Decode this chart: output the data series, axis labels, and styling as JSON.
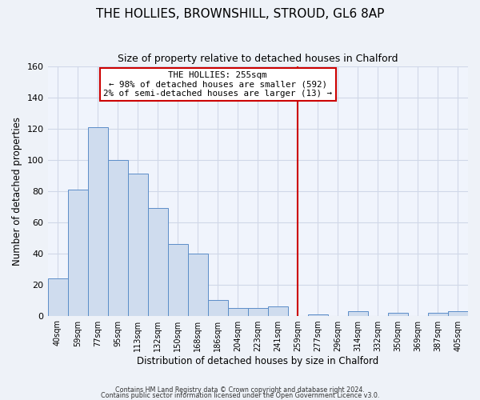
{
  "title": "THE HOLLIES, BROWNSHILL, STROUD, GL6 8AP",
  "subtitle": "Size of property relative to detached houses in Chalford",
  "xlabel": "Distribution of detached houses by size in Chalford",
  "ylabel": "Number of detached properties",
  "bar_labels": [
    "40sqm",
    "59sqm",
    "77sqm",
    "95sqm",
    "113sqm",
    "132sqm",
    "150sqm",
    "168sqm",
    "186sqm",
    "204sqm",
    "223sqm",
    "241sqm",
    "259sqm",
    "277sqm",
    "296sqm",
    "314sqm",
    "332sqm",
    "350sqm",
    "369sqm",
    "387sqm",
    "405sqm"
  ],
  "bar_heights": [
    24,
    81,
    121,
    100,
    91,
    69,
    46,
    40,
    10,
    5,
    5,
    6,
    0,
    1,
    0,
    3,
    0,
    2,
    0,
    2,
    3
  ],
  "bar_color": "#cfdcee",
  "bar_edge_color": "#5b8dc8",
  "vline_x_index": 12,
  "vline_color": "#cc0000",
  "annotation_title": "THE HOLLIES: 255sqm",
  "annotation_line1": "← 98% of detached houses are smaller (592)",
  "annotation_line2": "2% of semi-detached houses are larger (13) →",
  "annotation_box_color": "#ffffff",
  "annotation_box_edge": "#cc0000",
  "ylim": [
    0,
    160
  ],
  "yticks": [
    0,
    20,
    40,
    60,
    80,
    100,
    120,
    140,
    160
  ],
  "footer1": "Contains HM Land Registry data © Crown copyright and database right 2024.",
  "footer2": "Contains public sector information licensed under the Open Government Licence v3.0.",
  "bg_color": "#eef2f8",
  "grid_color": "#d0d8e8",
  "plot_bg_color": "#f0f4fc"
}
